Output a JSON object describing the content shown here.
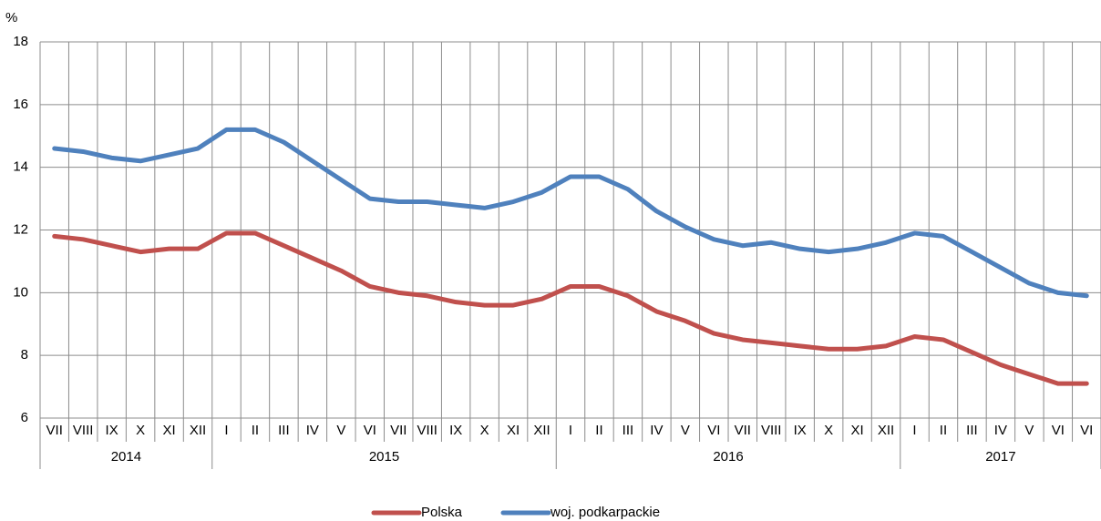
{
  "chart_data": {
    "type": "line",
    "y_label": "%",
    "categories": [
      "VII",
      "VIII",
      "IX",
      "X",
      "XI",
      "XII",
      "I",
      "II",
      "III",
      "IV",
      "V",
      "VI",
      "VII",
      "VIII",
      "IX",
      "X",
      "XI",
      "XII",
      "I",
      "II",
      "III",
      "IV",
      "V",
      "VI",
      "VII",
      "VIII",
      "IX",
      "X",
      "XI",
      "XII",
      "I",
      "II",
      "III",
      "IV",
      "V",
      "VI",
      "VI"
    ],
    "x_groups": [
      "2014",
      "2015",
      "2016",
      "2017"
    ],
    "series": [
      {
        "name": "Polska",
        "color": "#c0504d",
        "values": [
          11.8,
          11.7,
          11.5,
          11.3,
          11.4,
          11.4,
          11.9,
          11.9,
          11.5,
          11.1,
          10.7,
          10.2,
          10.0,
          9.9,
          9.7,
          9.6,
          9.6,
          9.8,
          10.2,
          10.2,
          9.9,
          9.4,
          9.1,
          8.7,
          8.5,
          8.4,
          8.3,
          8.2,
          8.2,
          8.3,
          8.6,
          8.5,
          8.1,
          7.7,
          7.4,
          7.1,
          7.1
        ]
      },
      {
        "name": "woj. podkarpackie",
        "color": "#4f81bd",
        "values": [
          14.6,
          14.5,
          14.3,
          14.2,
          14.4,
          14.6,
          15.2,
          15.2,
          14.8,
          14.2,
          13.6,
          13.0,
          12.9,
          12.9,
          12.8,
          12.7,
          12.9,
          13.2,
          13.7,
          13.7,
          13.3,
          12.6,
          12.1,
          11.7,
          11.5,
          11.6,
          11.4,
          11.3,
          11.4,
          11.6,
          11.9,
          11.8,
          11.3,
          10.8,
          10.3,
          10.0,
          9.9
        ]
      }
    ],
    "ylim": [
      6,
      18
    ],
    "yticks": [
      6,
      8,
      10,
      12,
      14,
      16,
      18
    ],
    "grid": true,
    "legend": "bottom"
  }
}
